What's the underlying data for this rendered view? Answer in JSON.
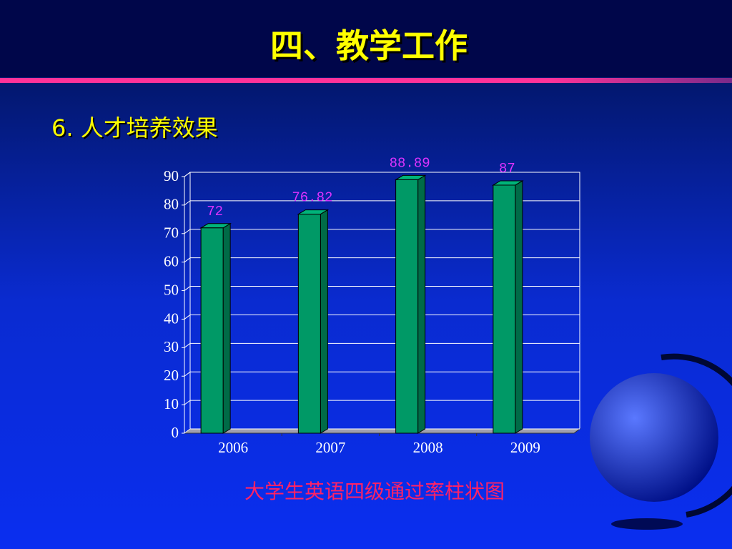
{
  "header": {
    "title": "四、教学工作",
    "subtitle": "6. 人才培养效果"
  },
  "chart_data": {
    "type": "bar",
    "title": "大学生英语四级通过率柱状图",
    "categories": [
      "2006",
      "2007",
      "2008",
      "2009"
    ],
    "values": [
      72,
      76.82,
      88.89,
      87
    ],
    "color": "#009966",
    "ylim": [
      0,
      90
    ],
    "yticks": [
      0,
      10,
      20,
      30,
      40,
      50,
      60,
      70,
      80,
      90
    ],
    "grid": true
  }
}
